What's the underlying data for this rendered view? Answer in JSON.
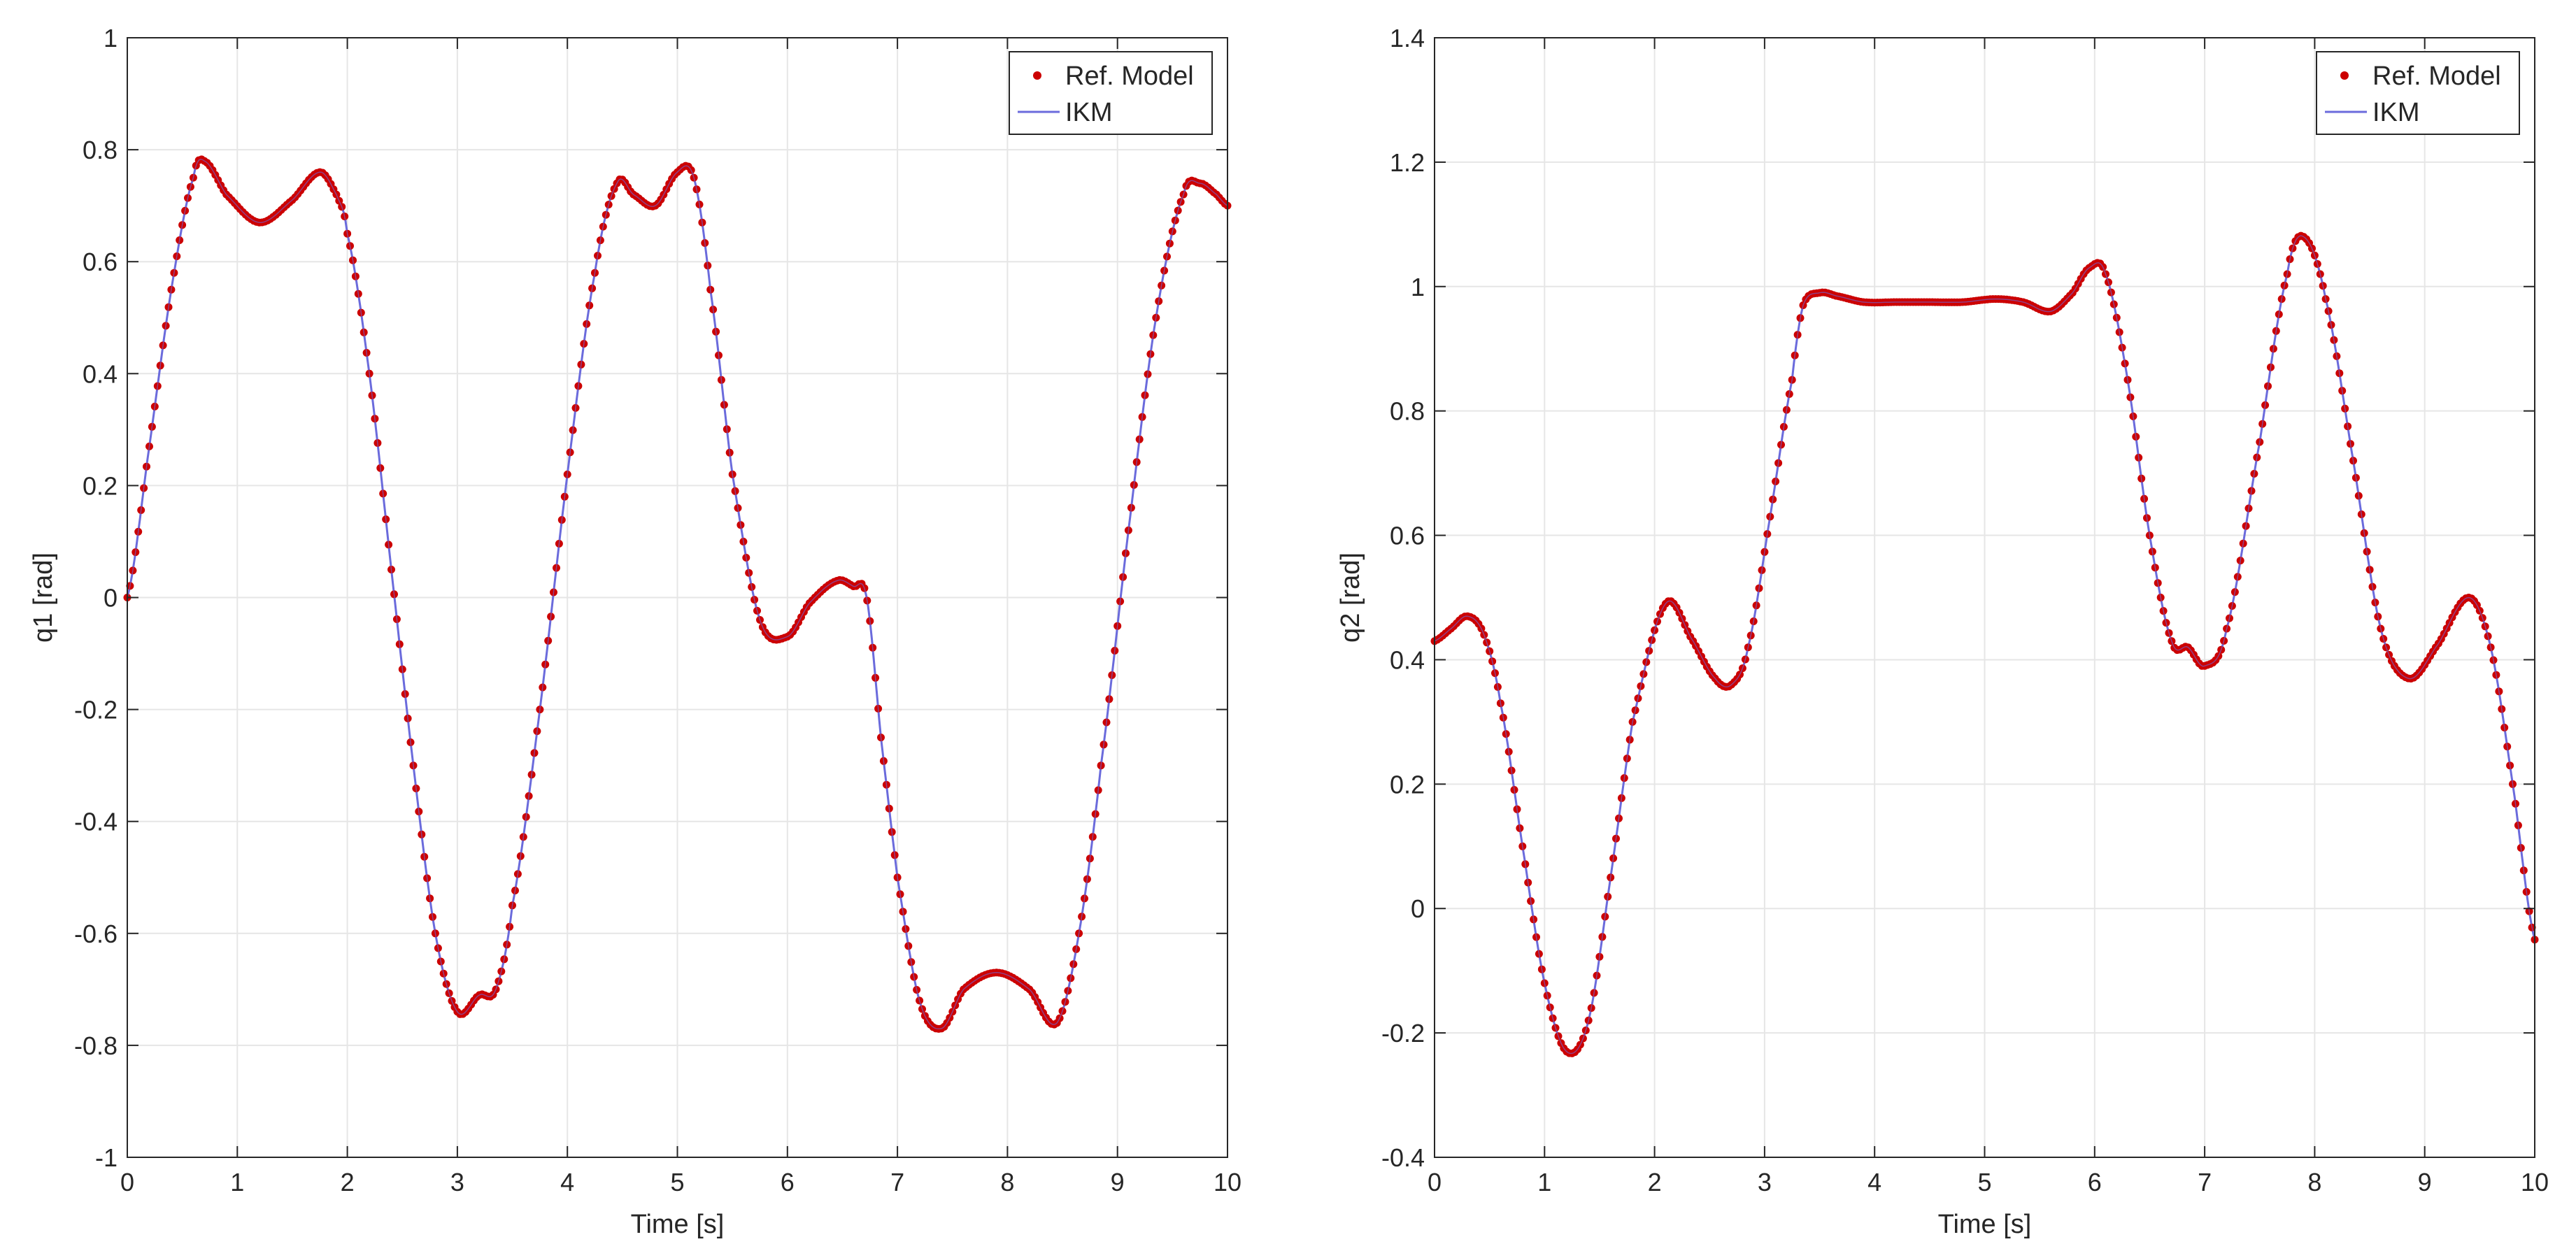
{
  "chart_data": [
    {
      "type": "line",
      "xlabel": "Time [s]",
      "ylabel": "q1 [rad]",
      "xlim": [
        0,
        10
      ],
      "ylim": [
        -1,
        1
      ],
      "xticks": [
        0,
        1,
        2,
        3,
        4,
        5,
        6,
        7,
        8,
        9,
        10
      ],
      "yticks": [
        -1,
        -0.8,
        -0.6,
        -0.4,
        -0.2,
        0,
        0.2,
        0.4,
        0.6,
        0.8,
        1
      ],
      "xtick_labels": [
        "0",
        "1",
        "2",
        "3",
        "4",
        "5",
        "6",
        "7",
        "8",
        "9",
        "10"
      ],
      "ytick_labels": [
        "-1",
        "-0.8",
        "-0.6",
        "-0.4",
        "-0.2",
        "0",
        "0.2",
        "0.4",
        "0.6",
        "0.8",
        "1"
      ],
      "grid": true,
      "legend": {
        "position": "top-right",
        "entries": [
          "Ref. Model",
          "IKM"
        ]
      },
      "series": [
        {
          "name": "Ref. Model",
          "style": "markers",
          "color": "#cc0000"
        },
        {
          "name": "IKM",
          "style": "line",
          "color": "#6b6bdc"
        }
      ],
      "x": [
        0,
        0.2,
        0.4,
        0.6,
        0.7,
        0.9,
        1.2,
        1.5,
        1.75,
        1.9,
        2.0,
        2.2,
        2.4,
        2.6,
        2.8,
        3.0,
        3.2,
        3.35,
        3.5,
        3.75,
        4.0,
        4.25,
        4.45,
        4.6,
        4.8,
        5.0,
        5.15,
        5.3,
        5.5,
        5.75,
        6.0,
        6.2,
        6.45,
        6.6,
        6.72,
        6.85,
        7.0,
        7.2,
        7.4,
        7.6,
        7.9,
        8.2,
        8.45,
        8.65,
        8.85,
        9.1,
        9.35,
        9.6,
        9.75,
        9.9,
        10.0
      ],
      "y": [
        0,
        0.27,
        0.55,
        0.75,
        0.78,
        0.72,
        0.67,
        0.71,
        0.76,
        0.72,
        0.65,
        0.4,
        0.05,
        -0.3,
        -0.6,
        -0.74,
        -0.71,
        -0.7,
        -0.55,
        -0.2,
        0.22,
        0.58,
        0.74,
        0.72,
        0.7,
        0.76,
        0.75,
        0.55,
        0.22,
        -0.04,
        -0.07,
        -0.01,
        0.03,
        0.02,
        0.0,
        -0.25,
        -0.5,
        -0.72,
        -0.77,
        -0.7,
        -0.67,
        -0.7,
        -0.76,
        -0.6,
        -0.3,
        0.12,
        0.5,
        0.72,
        0.74,
        0.72,
        0.7
      ]
    },
    {
      "type": "line",
      "xlabel": "Time [s]",
      "ylabel": "q2 [rad]",
      "xlim": [
        0,
        10
      ],
      "ylim": [
        -0.4,
        1.4
      ],
      "xticks": [
        0,
        1,
        2,
        3,
        4,
        5,
        6,
        7,
        8,
        9,
        10
      ],
      "yticks": [
        -0.4,
        -0.2,
        0,
        0.2,
        0.4,
        0.6,
        0.8,
        1,
        1.2,
        1.4
      ],
      "xtick_labels": [
        "0",
        "1",
        "2",
        "3",
        "4",
        "5",
        "6",
        "7",
        "8",
        "9",
        "10"
      ],
      "ytick_labels": [
        "-0.4",
        "-0.2",
        "0",
        "0.2",
        "0.4",
        "0.6",
        "0.8",
        "1",
        "1.2",
        "1.4"
      ],
      "grid": true,
      "legend": {
        "position": "top-right",
        "entries": [
          "Ref. Model",
          "IKM"
        ]
      },
      "series": [
        {
          "name": "Ref. Model",
          "style": "markers",
          "color": "#cc0000"
        },
        {
          "name": "IKM",
          "style": "line",
          "color": "#6b6bdc"
        }
      ],
      "x": [
        0,
        0.15,
        0.3,
        0.45,
        0.6,
        0.8,
        1.0,
        1.2,
        1.4,
        1.6,
        1.8,
        2.1,
        2.35,
        2.55,
        2.7,
        2.85,
        3.05,
        3.25,
        3.35,
        3.5,
        3.65,
        3.9,
        4.2,
        4.5,
        4.8,
        5.1,
        5.35,
        5.6,
        5.8,
        5.95,
        6.1,
        6.3,
        6.5,
        6.7,
        6.85,
        7.0,
        7.2,
        7.5,
        7.75,
        7.9,
        8.1,
        8.35,
        8.6,
        8.85,
        9.1,
        9.4,
        9.6,
        9.8,
        10.0
      ],
      "y": [
        0.43,
        0.45,
        0.47,
        0.44,
        0.33,
        0.1,
        -0.12,
        -0.23,
        -0.18,
        0.05,
        0.3,
        0.49,
        0.43,
        0.37,
        0.36,
        0.42,
        0.63,
        0.85,
        0.97,
        0.99,
        0.985,
        0.975,
        0.975,
        0.975,
        0.975,
        0.98,
        0.975,
        0.96,
        0.99,
        1.03,
        1.02,
        0.85,
        0.6,
        0.43,
        0.42,
        0.39,
        0.45,
        0.75,
        1.02,
        1.08,
        0.98,
        0.72,
        0.45,
        0.37,
        0.42,
        0.5,
        0.42,
        0.2,
        -0.05
      ]
    }
  ]
}
